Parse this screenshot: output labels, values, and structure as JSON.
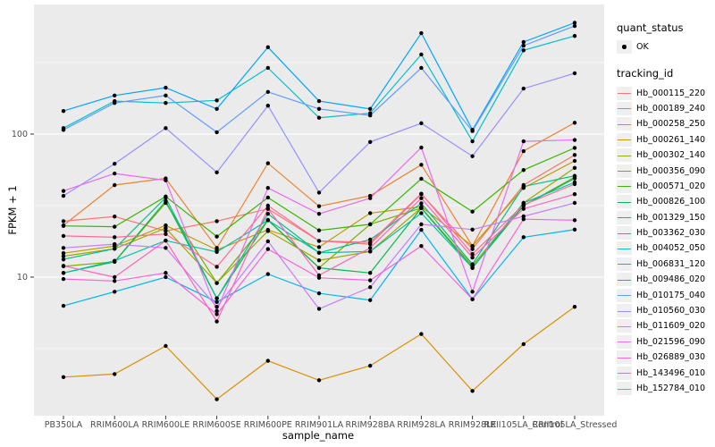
{
  "axes": {
    "x_label": "sample_name",
    "y_label": "FPKM + 1",
    "y_ticks": [
      {
        "label": "100",
        "value": 100
      },
      {
        "label": "10",
        "value": 10
      }
    ]
  },
  "legend": {
    "quant_status_title": "quant_status",
    "quant_status_value": "OK",
    "tracking_id_title": "tracking_id"
  },
  "colors": {
    "panel_bg": "#EBEBEB",
    "gridline": "#FFFFFF",
    "tick_mark": "#333333",
    "tick_text": "#4D4D4D",
    "point": "#000000"
  },
  "chart_data": {
    "type": "line",
    "title": "",
    "xlabel": "sample_name",
    "ylabel": "FPKM + 1",
    "y_scale": "log10",
    "ylim": [
      1.07,
      805
    ],
    "grid": "on",
    "legend_position": "right",
    "minor_gridlines": [
      3.162,
      31.62,
      316.2
    ],
    "major_gridlines": [
      10,
      100
    ],
    "categories": [
      "PB350LA",
      "RRIM600LA",
      "RRIM600LE",
      "RRIM600SE",
      "RRIM600PE",
      "RRIM901LA",
      "RRIM928BA",
      "RRIM928LA",
      "RRIM928LE",
      "RRII105LA_Control",
      "RRII105LA_Stressed"
    ],
    "point_shape": "filled-circle",
    "point_color": "#000000",
    "series": [
      {
        "name": "Hb_000115_220",
        "color": "#F8766D",
        "values": [
          24.6,
          26.5,
          21,
          24.6,
          30,
          17.9,
          17,
          38,
          15.7,
          44,
          71.5
        ]
      },
      {
        "name": "Hb_000189_240",
        "color": "#EA8331",
        "values": [
          23,
          44,
          49,
          16,
          62.5,
          31.3,
          37,
          61,
          16.5,
          76,
          120
        ]
      },
      {
        "name": "Hb_000258_250",
        "color": "#D89000",
        "values": [
          2.0,
          2.1,
          3.3,
          1.4,
          2.6,
          1.9,
          2.4,
          4.0,
          1.6,
          3.4,
          6.2
        ]
      },
      {
        "name": "Hb_000261_140",
        "color": "#C09B00",
        "values": [
          14.7,
          16.5,
          23,
          15.5,
          21.4,
          16.2,
          28,
          31,
          16.5,
          42,
          65
        ]
      },
      {
        "name": "Hb_000302_140",
        "color": "#A3A500",
        "values": [
          14.0,
          15.8,
          22,
          9.1,
          21,
          13.1,
          15.1,
          30.5,
          12,
          33,
          58
        ]
      },
      {
        "name": "Hb_000356_090",
        "color": "#7CAE00",
        "values": [
          11.9,
          12.8,
          33,
          9.1,
          25,
          11.6,
          23.4,
          30.4,
          11.6,
          31.6,
          50
        ]
      },
      {
        "name": "Hb_000571_020",
        "color": "#39B600",
        "values": [
          22.8,
          22.5,
          36.6,
          19.2,
          36,
          21.2,
          23.4,
          48.7,
          28.7,
          56,
          80
        ]
      },
      {
        "name": "Hb_000826_100",
        "color": "#00BB4E",
        "values": [
          10.7,
          12.8,
          34,
          7.1,
          25.1,
          11.6,
          10.7,
          30.4,
          11.6,
          31.6,
          49
        ]
      },
      {
        "name": "Hb_001329_150",
        "color": "#00C087",
        "values": [
          13.3,
          15.8,
          36,
          7.1,
          27.7,
          14.8,
          18.3,
          32.8,
          12.3,
          43,
          51
        ]
      },
      {
        "name": "Hb_003362_030",
        "color": "#00C1AB",
        "values": [
          10.7,
          13,
          18,
          15.0,
          25,
          14.8,
          15.1,
          28,
          11.6,
          33,
          46
        ]
      },
      {
        "name": "Hb_004052_050",
        "color": "#00C0CB",
        "values": [
          110,
          170,
          165,
          172,
          290,
          130,
          140,
          360,
          89,
          385,
          485
        ]
      },
      {
        "name": "Hb_006831_120",
        "color": "#00B4EF",
        "values": [
          6.3,
          7.9,
          10,
          6.7,
          10.5,
          7.7,
          6.9,
          21.4,
          7.0,
          19,
          21.5
        ]
      },
      {
        "name": "Hb_009486_020",
        "color": "#00A5FF",
        "values": [
          145,
          186,
          211,
          150,
          405,
          170,
          150,
          508,
          107,
          440,
          600
        ]
      },
      {
        "name": "Hb_010175_040",
        "color": "#619CFF",
        "values": [
          107,
          165,
          186,
          103,
          197,
          150,
          135,
          290,
          105,
          415,
          570
        ]
      },
      {
        "name": "Hb_010560_030",
        "color": "#9590FF",
        "values": [
          37,
          62,
          110,
          54,
          158,
          39,
          88,
          119,
          70,
          208,
          266
        ]
      },
      {
        "name": "Hb_011609_020",
        "color": "#C77CFF",
        "values": [
          16,
          17,
          16,
          6.2,
          17.8,
          6.0,
          8.5,
          23.4,
          21.5,
          26.6,
          33
        ]
      },
      {
        "name": "Hb_021596_090",
        "color": "#E76BF3",
        "values": [
          40,
          53,
          47.5,
          5.8,
          42,
          27.7,
          35.6,
          80.5,
          7.9,
          89,
          91
        ]
      },
      {
        "name": "Hb_026889_030",
        "color": "#FA62DB",
        "values": [
          9.7,
          9.4,
          10.7,
          5.5,
          15.7,
          9.9,
          9.5,
          16.5,
          7.0,
          25.4,
          25
        ]
      },
      {
        "name": "Hb_143496_010",
        "color": "#FF62BC",
        "values": [
          12,
          10,
          18,
          4.9,
          30,
          10.3,
          16,
          35.6,
          13.7,
          30,
          38
        ]
      },
      {
        "name": "Hb_152784_010",
        "color": "#FF6A98",
        "values": [
          19.4,
          19,
          20,
          11.8,
          31.6,
          17.9,
          17.5,
          38.3,
          14.5,
          32,
          44.7
        ]
      }
    ]
  }
}
